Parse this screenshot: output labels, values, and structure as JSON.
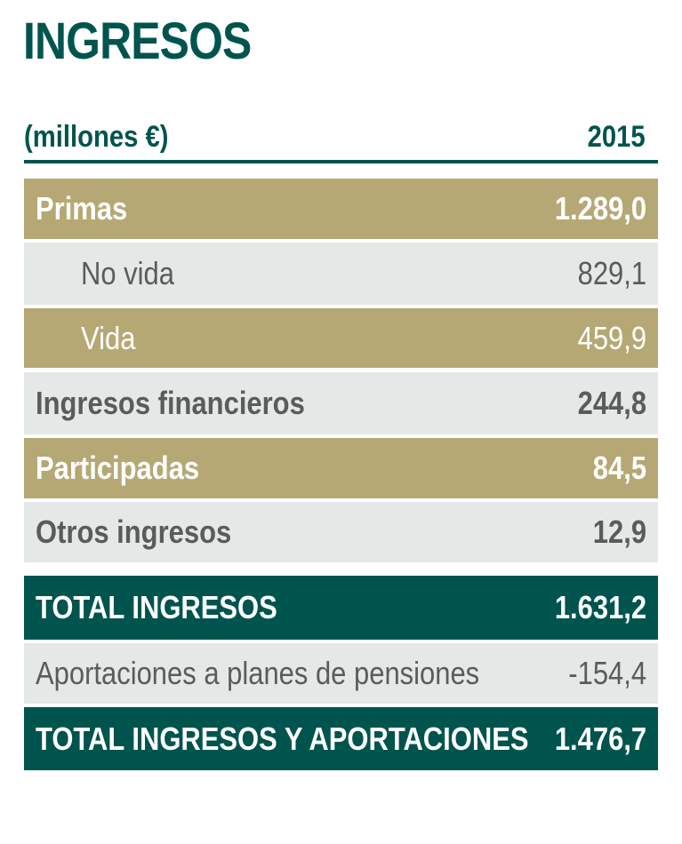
{
  "title": "INGRESOS",
  "header": {
    "unit": "(millones €)",
    "year": "2015"
  },
  "rows": [
    {
      "label": "Primas",
      "value": "1.289,0"
    },
    {
      "label": "No vida",
      "value": "829,1"
    },
    {
      "label": "Vida",
      "value": "459,9"
    },
    {
      "label": "Ingresos financieros",
      "value": "244,8"
    },
    {
      "label": "Participadas",
      "value": "84,5"
    },
    {
      "label": "Otros ingresos",
      "value": "12,9"
    },
    {
      "label": "TOTAL INGRESOS",
      "value": "1.631,2"
    },
    {
      "label": "Aportaciones a planes de pensiones",
      "value": "-154,4"
    },
    {
      "label": "TOTAL INGRESOS Y APORTACIONES",
      "value": "1.476,7"
    }
  ],
  "colors": {
    "teal": "#00544e",
    "gold": "#b6a874",
    "grey_row": "#e4e9e8",
    "grey_text": "#5b5b5b"
  }
}
